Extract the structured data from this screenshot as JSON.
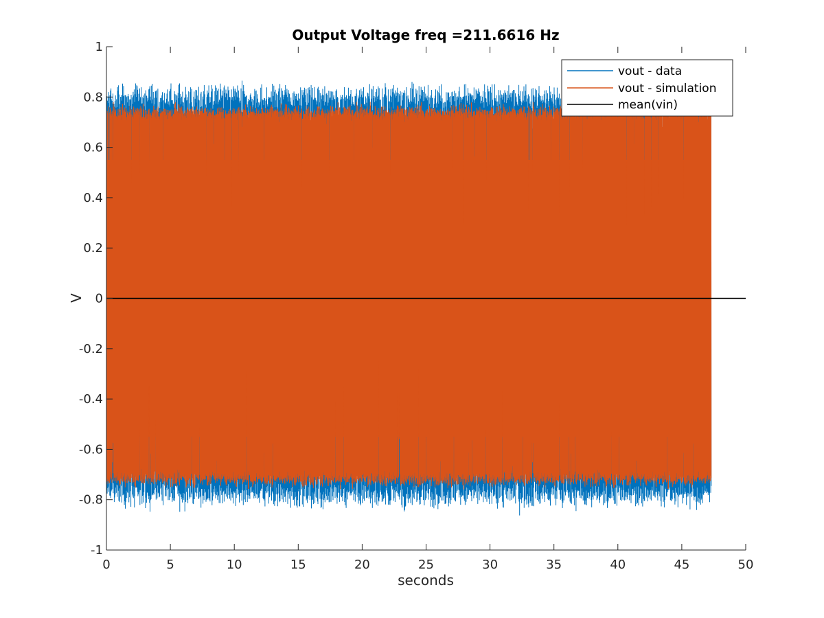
{
  "chart_data": {
    "type": "line",
    "title": "Output Voltage freq =211.6616 Hz",
    "xlabel": "seconds",
    "ylabel": "V",
    "xlim": [
      0,
      50
    ],
    "ylim": [
      -1,
      1
    ],
    "xticks": [
      0,
      5,
      10,
      15,
      20,
      25,
      30,
      35,
      40,
      45,
      50
    ],
    "yticks": [
      -1,
      -0.8,
      -0.6,
      -0.4,
      -0.2,
      0,
      0.2,
      0.4,
      0.6,
      0.8,
      1
    ],
    "xtick_labels": [
      "0",
      "5",
      "10",
      "15",
      "20",
      "25",
      "30",
      "35",
      "40",
      "45",
      "50"
    ],
    "ytick_labels": [
      "-1",
      "-0.8",
      "-0.6",
      "-0.4",
      "-0.2",
      "0",
      "0.2",
      "0.4",
      "0.6",
      "0.8",
      "1"
    ],
    "grid": false,
    "legend_position": "top-right",
    "series": [
      {
        "name": "vout - data",
        "color": "#0072BD",
        "x_range": [
          0,
          47.3
        ],
        "envelope_upper_typical": 0.8,
        "envelope_lower_typical": -0.78,
        "peak_max": 1.0,
        "peak_min": -0.98
      },
      {
        "name": "vout - simulation",
        "color": "#D95319",
        "x_range": [
          0,
          47.3
        ],
        "envelope_upper_typical": 0.74,
        "envelope_lower_typical": -0.72,
        "peak_max": 0.79,
        "peak_min": -0.8
      },
      {
        "name": "mean(vin)",
        "color": "#000000",
        "x": [
          0,
          50
        ],
        "y": [
          0,
          0
        ]
      }
    ]
  }
}
